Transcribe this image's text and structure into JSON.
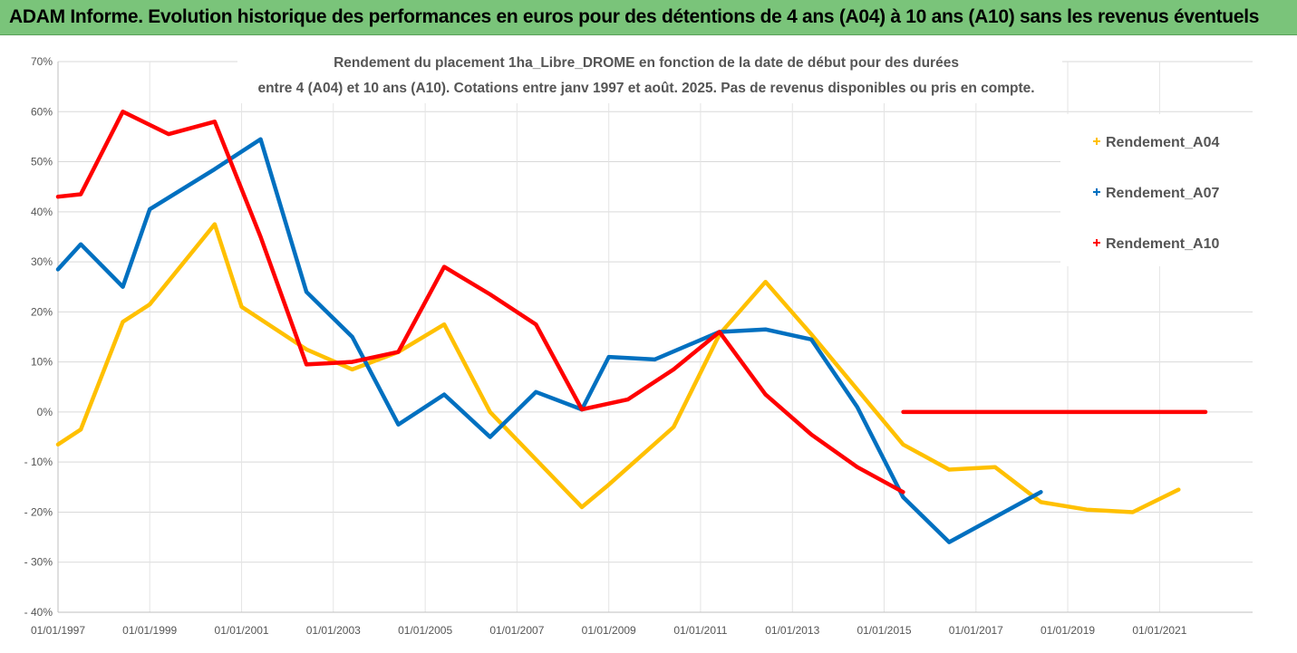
{
  "banner": {
    "title": "ADAM Informe. Evolution historique des performances en euros pour des détentions de 4 ans (A04) à 10 ans (A10) sans les revenus éventuels",
    "background": "#7ac47a"
  },
  "chart_data": {
    "type": "line",
    "title": "",
    "subtitle_lines": [
      "Rendement du placement 1ha_Libre_DROME en fonction de la date de début pour des durées",
      "entre 4 (A04) et 10 ans (A10). Cotations entre janv 1997 et août. 2025. Pas de revenus disponibles ou pris en compte."
    ],
    "xlabel": "",
    "ylabel": "",
    "x_ticks": [
      "01/01/1997",
      "01/01/1999",
      "01/01/2001",
      "01/01/2003",
      "01/01/2005",
      "01/01/2007",
      "01/01/2009",
      "01/01/2011",
      "01/01/2013",
      "01/01/2015",
      "01/01/2017",
      "01/01/2019",
      "01/01/2021"
    ],
    "y_ticks": [
      "70%",
      "60%",
      "50%",
      "40%",
      "30%",
      "20%",
      "10%",
      "0%",
      "- 10%",
      "- 20%",
      "- 30%",
      "- 40%"
    ],
    "ylim": [
      -40,
      70
    ],
    "xlim": [
      "1997-01-01",
      "2022-01-01"
    ],
    "grid": true,
    "legend_position": "right",
    "series": [
      {
        "name": "Rendement_A04",
        "color": "#ffc000",
        "x": [
          "1997-01-01",
          "1997-07-01",
          "1998-06-01",
          "1999-01-01",
          "2000-06-01",
          "2001-01-01",
          "2002-06-01",
          "2003-06-01",
          "2004-06-01",
          "2005-06-01",
          "2006-06-01",
          "2008-06-01",
          "2009-01-01",
          "2010-06-01",
          "2011-06-01",
          "2012-06-01",
          "2013-06-01",
          "2015-06-01",
          "2016-06-01",
          "2017-06-01",
          "2018-06-01",
          "2019-06-01",
          "2020-06-01",
          "2021-06-01"
        ],
        "values": [
          -6.5,
          -3.5,
          18,
          21.5,
          37.5,
          21,
          12.5,
          8.5,
          12,
          17.5,
          0,
          -19,
          -14.5,
          -3,
          15.5,
          26,
          15.5,
          -6.5,
          -11.5,
          -11,
          -18,
          -19.5,
          -20,
          -15.5
        ]
      },
      {
        "name": "Rendement_A07",
        "color": "#0070c0",
        "x": [
          "1997-01-01",
          "1997-07-01",
          "1998-06-01",
          "1999-01-01",
          "2000-06-01",
          "2001-06-01",
          "2002-06-01",
          "2003-06-01",
          "2004-06-01",
          "2005-06-01",
          "2006-06-01",
          "2007-06-01",
          "2008-06-01",
          "2009-01-01",
          "2010-01-01",
          "2011-06-01",
          "2012-06-01",
          "2013-06-01",
          "2014-06-01",
          "2015-06-01",
          "2016-06-01",
          "2017-06-01",
          "2018-06-01"
        ],
        "values": [
          28.5,
          33.5,
          25,
          40.5,
          48.5,
          54.5,
          24,
          15,
          -2.5,
          3.5,
          -5,
          4,
          0.5,
          11,
          10.5,
          16,
          16.5,
          14.5,
          1,
          -17,
          -26,
          -21,
          -16
        ]
      },
      {
        "name": "Rendement_A10",
        "color": "#ff0000",
        "x": [
          "1997-01-01",
          "1997-07-01",
          "1998-06-01",
          "1999-06-01",
          "2000-06-01",
          "2001-06-01",
          "2002-06-01",
          "2003-06-01",
          "2004-06-01",
          "2005-06-01",
          "2006-06-01",
          "2007-06-01",
          "2008-06-01",
          "2009-06-01",
          "2010-06-01",
          "2011-06-01",
          "2012-06-01",
          "2013-06-01",
          "2014-06-01",
          "2015-06-01",
          "2015-06-02",
          "2022-01-01"
        ],
        "values": [
          43,
          43.5,
          60,
          55.5,
          58,
          35,
          9.5,
          10,
          12,
          29,
          23.5,
          17.5,
          0.5,
          2.5,
          8.5,
          16,
          3.5,
          -4.5,
          -11,
          -16,
          0,
          0
        ]
      }
    ]
  }
}
